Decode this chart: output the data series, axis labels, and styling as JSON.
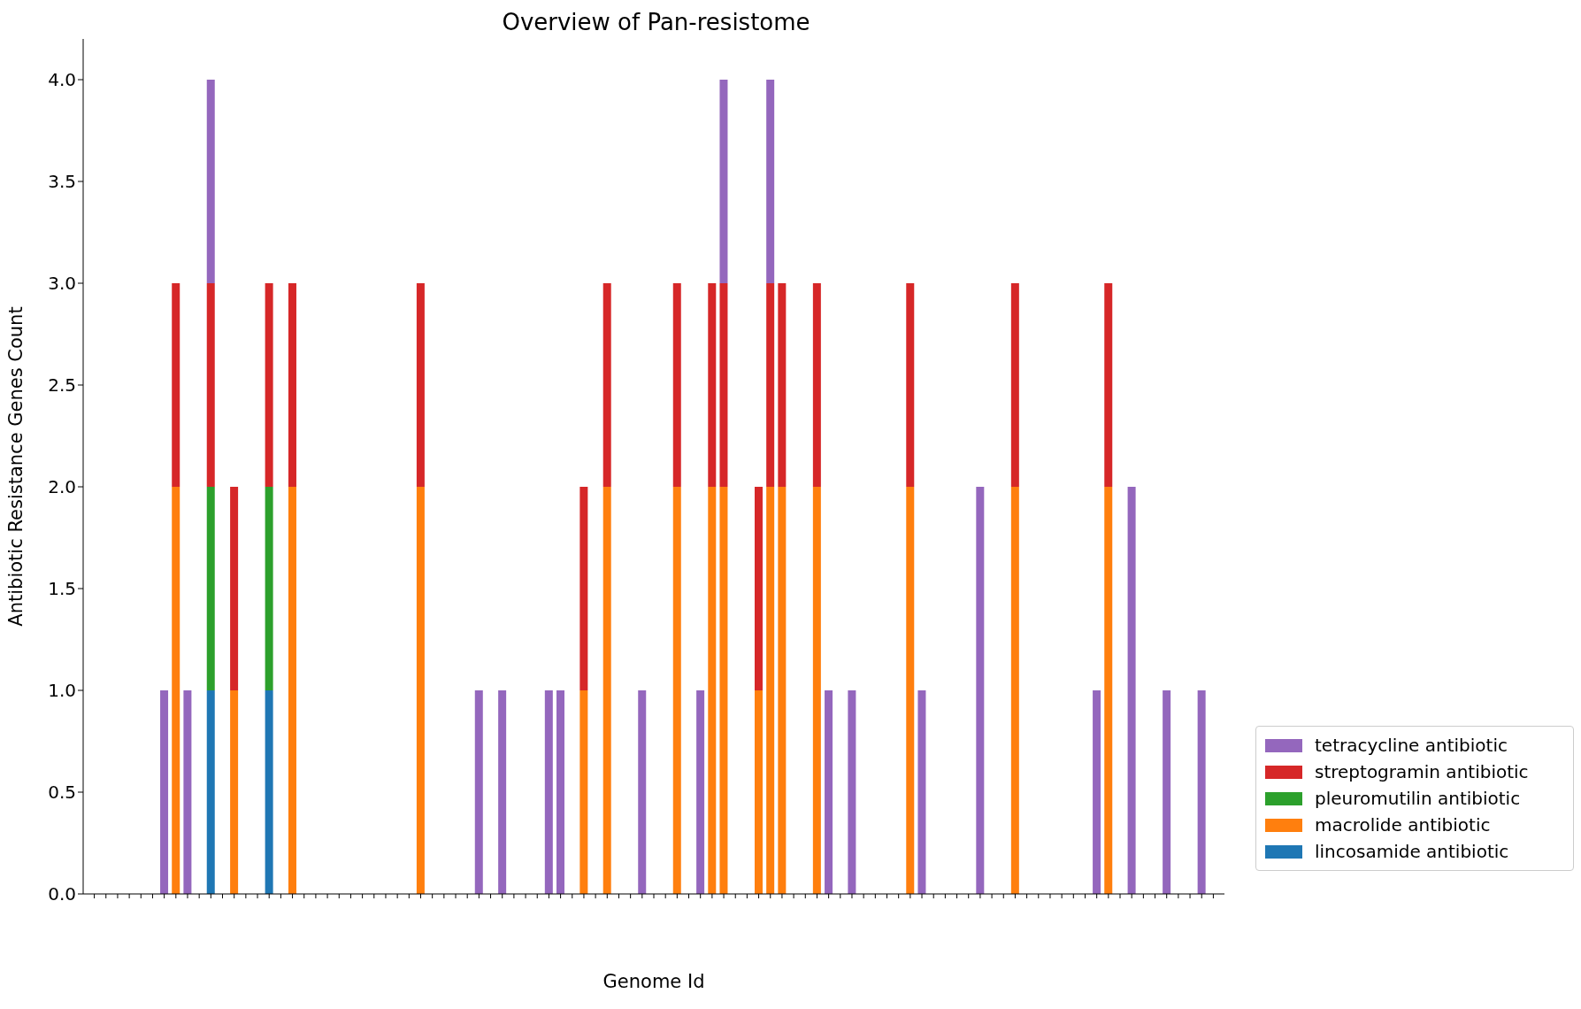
{
  "chart_data": {
    "type": "bar",
    "title": "Overview of Pan-resistome",
    "xlabel": "Genome Id",
    "ylabel": "Antibiotic Resistance Genes Count",
    "stacked": true,
    "legend": "bottom right",
    "categories": [
      null,
      null,
      null,
      null,
      null,
      null,
      null,
      null,
      null,
      null,
      null,
      null,
      null,
      null,
      null,
      null,
      null,
      null,
      null,
      null,
      null,
      null,
      null,
      null,
      null,
      null,
      null,
      null,
      null,
      null,
      null,
      null,
      null,
      null,
      null,
      null,
      null,
      null,
      null,
      null,
      null,
      null,
      null,
      null,
      null,
      null,
      null,
      null,
      null,
      null,
      null,
      null,
      null,
      null,
      null,
      null,
      null,
      null,
      null,
      null,
      null,
      null,
      null,
      null,
      null,
      null,
      null,
      null,
      null,
      null,
      null,
      null,
      null,
      null,
      null,
      null,
      null,
      null,
      null,
      null,
      null,
      null,
      null,
      null,
      null,
      null,
      null,
      null,
      null,
      null,
      null,
      null,
      null,
      null,
      null,
      null,
      null
    ],
    "ylim": [
      0,
      4.2
    ],
    "yticks": [
      {
        "value": 0,
        "label": "0.0"
      },
      {
        "value": 0.5,
        "label": "0.5"
      },
      {
        "value": 1,
        "label": "1.0"
      },
      {
        "value": 1.5,
        "label": "1.5"
      },
      {
        "value": 2,
        "label": "2.0"
      },
      {
        "value": 2.5,
        "label": "2.5"
      },
      {
        "value": 3,
        "label": "3.0"
      },
      {
        "value": 3.5,
        "label": "3.5"
      },
      {
        "value": 4,
        "label": "4.0"
      }
    ],
    "series": [
      {
        "name": "lincosamide antibiotic",
        "color": "#1f77b4",
        "values": [
          null,
          null,
          null,
          null,
          null,
          null,
          null,
          null,
          null,
          null,
          1,
          null,
          null,
          null,
          null,
          1,
          null,
          null,
          null,
          null,
          null,
          null,
          null,
          null,
          null,
          null,
          null,
          null,
          null,
          null,
          null,
          null,
          null,
          null,
          null,
          null,
          null,
          null,
          null,
          null,
          null,
          null,
          null,
          null,
          null,
          null,
          null,
          null,
          null,
          null,
          null,
          null,
          null,
          null,
          null,
          null,
          null,
          null,
          null,
          null,
          null,
          null,
          null,
          null,
          null,
          null,
          null,
          null,
          null,
          null,
          null,
          null,
          null,
          null,
          null,
          null,
          null,
          null,
          null,
          null,
          null,
          null,
          null,
          null,
          null,
          null,
          null,
          null,
          null,
          null,
          null,
          null,
          null,
          null,
          null,
          null,
          null
        ]
      },
      {
        "name": "macrolide antibiotic",
        "color": "#ff7f0e",
        "values": [
          null,
          null,
          null,
          null,
          null,
          null,
          null,
          2,
          null,
          null,
          null,
          null,
          1,
          null,
          null,
          null,
          null,
          2,
          null,
          null,
          null,
          null,
          null,
          null,
          null,
          null,
          null,
          null,
          2,
          null,
          null,
          null,
          null,
          null,
          null,
          null,
          null,
          null,
          null,
          null,
          null,
          null,
          1,
          null,
          2,
          null,
          null,
          null,
          null,
          null,
          2,
          null,
          null,
          2,
          2,
          null,
          null,
          1,
          2,
          2,
          null,
          null,
          2,
          null,
          null,
          null,
          null,
          null,
          null,
          null,
          2,
          null,
          null,
          null,
          null,
          null,
          null,
          null,
          null,
          2,
          null,
          null,
          null,
          null,
          null,
          null,
          null,
          2,
          null,
          null,
          null,
          null,
          null,
          null,
          null,
          null,
          null
        ]
      },
      {
        "name": "pleuromutilin antibiotic",
        "color": "#2ca02c",
        "values": [
          null,
          null,
          null,
          null,
          null,
          null,
          null,
          null,
          null,
          null,
          1,
          null,
          null,
          null,
          null,
          1,
          null,
          null,
          null,
          null,
          null,
          null,
          null,
          null,
          null,
          null,
          null,
          null,
          null,
          null,
          null,
          null,
          null,
          null,
          null,
          null,
          null,
          null,
          null,
          null,
          null,
          null,
          null,
          null,
          null,
          null,
          null,
          null,
          null,
          null,
          null,
          null,
          null,
          null,
          null,
          null,
          null,
          null,
          null,
          null,
          null,
          null,
          null,
          null,
          null,
          null,
          null,
          null,
          null,
          null,
          null,
          null,
          null,
          null,
          null,
          null,
          null,
          null,
          null,
          null,
          null,
          null,
          null,
          null,
          null,
          null,
          null,
          null,
          null,
          null,
          null,
          null,
          null,
          null,
          null,
          null,
          null
        ]
      },
      {
        "name": "streptogramin antibiotic",
        "color": "#d62728",
        "values": [
          null,
          null,
          null,
          null,
          null,
          null,
          null,
          1,
          null,
          null,
          1,
          null,
          1,
          null,
          null,
          1,
          null,
          1,
          null,
          null,
          null,
          null,
          null,
          null,
          null,
          null,
          null,
          null,
          1,
          null,
          null,
          null,
          null,
          null,
          null,
          null,
          null,
          null,
          null,
          null,
          null,
          null,
          1,
          null,
          1,
          null,
          null,
          null,
          null,
          null,
          1,
          null,
          null,
          1,
          1,
          null,
          null,
          1,
          1,
          1,
          null,
          null,
          1,
          null,
          null,
          null,
          null,
          null,
          null,
          null,
          1,
          null,
          null,
          null,
          null,
          null,
          null,
          null,
          null,
          1,
          null,
          null,
          null,
          null,
          null,
          null,
          null,
          1,
          null,
          null,
          null,
          null,
          null,
          null,
          null,
          null,
          null
        ]
      },
      {
        "name": "tetracycline antibiotic",
        "color": "#9467bd",
        "values": [
          null,
          null,
          null,
          null,
          null,
          null,
          1,
          null,
          1,
          null,
          1,
          null,
          null,
          null,
          null,
          null,
          null,
          null,
          null,
          null,
          null,
          null,
          null,
          null,
          null,
          null,
          null,
          null,
          null,
          null,
          null,
          null,
          null,
          1,
          null,
          1,
          null,
          null,
          null,
          1,
          1,
          null,
          null,
          null,
          null,
          null,
          null,
          1,
          null,
          null,
          null,
          null,
          1,
          null,
          1,
          null,
          null,
          null,
          1,
          null,
          null,
          null,
          null,
          1,
          null,
          1,
          null,
          null,
          null,
          null,
          null,
          1,
          null,
          null,
          null,
          null,
          2,
          null,
          null,
          null,
          null,
          null,
          null,
          null,
          null,
          null,
          1,
          null,
          null,
          2,
          null,
          null,
          1,
          null,
          null,
          1,
          null
        ]
      }
    ]
  }
}
